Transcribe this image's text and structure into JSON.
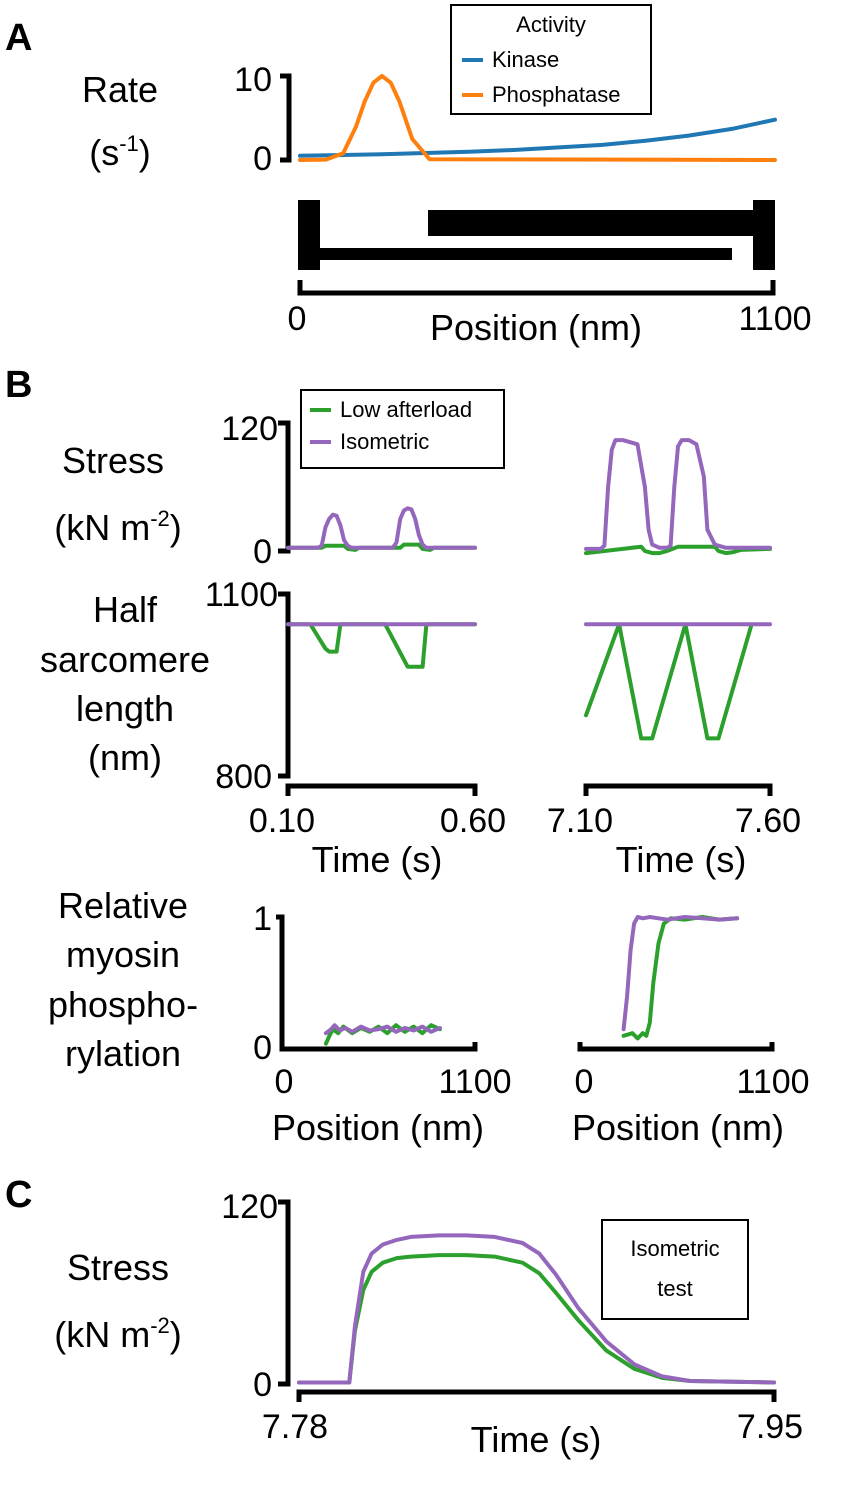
{
  "colors": {
    "kinase": "#1f77b4",
    "phosphatase": "#ff7f0e",
    "low_afterload": "#2ca02c",
    "isometric": "#9467bd",
    "axis": "#000000"
  },
  "panels": {
    "a": {
      "letter": "A"
    },
    "b": {
      "letter": "B"
    },
    "c": {
      "letter": "C"
    }
  },
  "chart_data": [
    {
      "id": "A-rate",
      "type": "line",
      "ylabel_lines": [
        "Rate",
        "(s",
        "-1",
        ")"
      ],
      "xlabel": "Position (nm)",
      "xlim": [
        0,
        1100
      ],
      "ylim": [
        0,
        10
      ],
      "xticks": [
        "0",
        "1100"
      ],
      "yticks": [
        "0",
        "10"
      ],
      "legend": {
        "title": "Activity",
        "position": "top",
        "entries": [
          "Kinase",
          "Phosphatase"
        ]
      },
      "series": [
        {
          "name": "Kinase",
          "color_key": "kinase",
          "x": [
            0,
            100,
            200,
            300,
            400,
            500,
            600,
            700,
            800,
            900,
            1000,
            1100
          ],
          "y": [
            0.5,
            0.6,
            0.7,
            0.85,
            1.0,
            1.2,
            1.5,
            1.8,
            2.3,
            2.9,
            3.7,
            4.8
          ]
        },
        {
          "name": "Phosphatase",
          "color_key": "phosphatase",
          "x": [
            0,
            60,
            100,
            130,
            150,
            170,
            190,
            210,
            230,
            260,
            300,
            1100
          ],
          "y": [
            0,
            0.05,
            0.8,
            4.0,
            7.0,
            9.2,
            10.0,
            9.2,
            7.0,
            2.5,
            0.1,
            0
          ]
        }
      ]
    },
    {
      "id": "B-stress-early",
      "type": "line",
      "ylabel_lines": [
        "Stress",
        "(kN m",
        "-2",
        ")"
      ],
      "xlim": [
        0.1,
        0.6
      ],
      "ylim": [
        0,
        120
      ],
      "yticks": [
        "0",
        "120"
      ],
      "legend": {
        "position": "top",
        "entries": [
          "Low afterload",
          "Isometric"
        ]
      },
      "series": [
        {
          "name": "Low afterload",
          "color_key": "low_afterload",
          "x": [
            0.1,
            0.19,
            0.2,
            0.25,
            0.26,
            0.28,
            0.29,
            0.3,
            0.4,
            0.41,
            0.45,
            0.46,
            0.48,
            0.49,
            0.6
          ],
          "y": [
            3,
            3,
            5,
            5,
            2,
            1,
            3,
            3,
            3,
            6,
            6,
            2,
            1,
            3,
            3
          ]
        },
        {
          "name": "Isometric",
          "color_key": "isometric",
          "x": [
            0.1,
            0.18,
            0.19,
            0.2,
            0.21,
            0.22,
            0.23,
            0.24,
            0.25,
            0.26,
            0.27,
            0.3,
            0.38,
            0.39,
            0.4,
            0.41,
            0.42,
            0.43,
            0.44,
            0.45,
            0.46,
            0.47,
            0.5,
            0.6
          ],
          "y": [
            3,
            3,
            5,
            22,
            30,
            34,
            33,
            24,
            10,
            5,
            3,
            3,
            3,
            8,
            30,
            38,
            40,
            39,
            30,
            15,
            6,
            3,
            3,
            3
          ]
        }
      ]
    },
    {
      "id": "B-stress-late",
      "type": "line",
      "xlim": [
        7.1,
        7.6
      ],
      "ylim": [
        0,
        120
      ],
      "series": [
        {
          "name": "Low afterload",
          "color_key": "low_afterload",
          "x": [
            7.1,
            7.15,
            7.2,
            7.25,
            7.26,
            7.28,
            7.3,
            7.32,
            7.35,
            7.4,
            7.45,
            7.46,
            7.48,
            7.5,
            7.52,
            7.6
          ],
          "y": [
            -2,
            0,
            2,
            4,
            0,
            -2,
            -2,
            0,
            4,
            4,
            4,
            0,
            -2,
            -1,
            1,
            2
          ]
        },
        {
          "name": "Isometric",
          "color_key": "isometric",
          "x": [
            7.1,
            7.14,
            7.15,
            7.16,
            7.17,
            7.18,
            7.2,
            7.24,
            7.26,
            7.27,
            7.28,
            7.3,
            7.32,
            7.33,
            7.34,
            7.35,
            7.36,
            7.38,
            7.4,
            7.42,
            7.43,
            7.45,
            7.48,
            7.6
          ],
          "y": [
            2,
            2,
            5,
            60,
            95,
            104,
            104,
            100,
            60,
            20,
            6,
            3,
            3,
            5,
            60,
            98,
            104,
            104,
            100,
            70,
            20,
            6,
            3,
            3
          ]
        }
      ]
    },
    {
      "id": "B-length-early",
      "type": "line",
      "ylabel_lines": [
        "Half",
        "sarcomere",
        "length",
        "(nm)"
      ],
      "xlabel": "Time (s)",
      "xlim": [
        0.1,
        0.6
      ],
      "ylim": [
        800,
        1100
      ],
      "xticks": [
        "0.10",
        "0.60"
      ],
      "yticks": [
        "800",
        "1100"
      ],
      "series": [
        {
          "name": "Low afterload",
          "color_key": "low_afterload",
          "x": [
            0.1,
            0.15,
            0.16,
            0.2,
            0.21,
            0.23,
            0.24,
            0.3,
            0.35,
            0.36,
            0.42,
            0.43,
            0.46,
            0.47,
            0.6
          ],
          "y": [
            1050,
            1050,
            1050,
            1010,
            1005,
            1005,
            1050,
            1050,
            1050,
            1050,
            980,
            980,
            980,
            1050,
            1050
          ]
        },
        {
          "name": "Isometric",
          "color_key": "isometric",
          "x": [
            0.1,
            0.6
          ],
          "y": [
            1050,
            1050
          ]
        }
      ]
    },
    {
      "id": "B-length-late",
      "type": "line",
      "xlabel": "Time (s)",
      "xlim": [
        7.1,
        7.6
      ],
      "ylim": [
        800,
        1100
      ],
      "xticks": [
        "7.10",
        "7.60"
      ],
      "series": [
        {
          "name": "Low afterload",
          "color_key": "low_afterload",
          "x": [
            7.1,
            7.19,
            7.25,
            7.28,
            7.37,
            7.43,
            7.46,
            7.55
          ],
          "y": [
            900,
            1050,
            862,
            862,
            1050,
            862,
            862,
            1050
          ]
        },
        {
          "name": "Isometric",
          "color_key": "isometric",
          "x": [
            7.1,
            7.6
          ],
          "y": [
            1050,
            1050
          ]
        }
      ]
    },
    {
      "id": "B-phos-early",
      "type": "line",
      "ylabel_lines": [
        "Relative",
        "myosin",
        "phospho-",
        "rylation"
      ],
      "xlabel": "Position (nm)",
      "xlim": [
        0,
        1100
      ],
      "ylim": [
        0,
        1
      ],
      "xticks": [
        "0",
        "1100"
      ],
      "yticks": [
        "0",
        "1"
      ],
      "series": [
        {
          "name": "Low afterload",
          "color_key": "low_afterload",
          "x": [
            250,
            270,
            290,
            320,
            350,
            400,
            450,
            500,
            550,
            600,
            650,
            700,
            750,
            800,
            850,
            900
          ],
          "y": [
            0.04,
            0.1,
            0.15,
            0.12,
            0.17,
            0.12,
            0.16,
            0.13,
            0.17,
            0.12,
            0.18,
            0.13,
            0.17,
            0.12,
            0.18,
            0.15
          ]
        },
        {
          "name": "Isometric",
          "color_key": "isometric",
          "x": [
            250,
            280,
            300,
            330,
            360,
            400,
            450,
            500,
            550,
            600,
            650,
            700,
            750,
            800,
            850,
            900
          ],
          "y": [
            0.12,
            0.15,
            0.18,
            0.14,
            0.16,
            0.13,
            0.17,
            0.14,
            0.15,
            0.17,
            0.13,
            0.16,
            0.14,
            0.17,
            0.13,
            0.16
          ]
        }
      ]
    },
    {
      "id": "B-phos-late",
      "type": "line",
      "xlabel": "Position (nm)",
      "xlim": [
        0,
        1100
      ],
      "ylim": [
        0,
        1
      ],
      "xticks": [
        "0",
        "1100"
      ],
      "series": [
        {
          "name": "Low afterload",
          "color_key": "low_afterload",
          "x": [
            250,
            300,
            330,
            360,
            380,
            400,
            420,
            450,
            480,
            520,
            600,
            700,
            800,
            900
          ],
          "y": [
            0.1,
            0.12,
            0.08,
            0.12,
            0.1,
            0.2,
            0.5,
            0.8,
            0.95,
            0.99,
            0.98,
            1.0,
            0.98,
            0.99
          ]
        },
        {
          "name": "Isometric",
          "color_key": "isometric",
          "x": [
            250,
            270,
            290,
            310,
            330,
            360,
            400,
            450,
            500,
            600,
            700,
            800,
            900
          ],
          "y": [
            0.15,
            0.4,
            0.75,
            0.95,
            1.0,
            0.99,
            1.0,
            0.99,
            0.98,
            1.0,
            0.99,
            0.98,
            0.99
          ]
        }
      ]
    },
    {
      "id": "C-stress",
      "type": "line",
      "ylabel_lines": [
        "Stress",
        "(kN m",
        "-2",
        ")"
      ],
      "xlabel": "Time (s)",
      "xlim": [
        7.78,
        7.95
      ],
      "ylim": [
        0,
        120
      ],
      "xticks": [
        "7.78",
        "7.95"
      ],
      "yticks": [
        "0",
        "120"
      ],
      "legend": {
        "position": "top-right",
        "entries": [
          "Isometric",
          "test"
        ]
      },
      "series": [
        {
          "name": "Low afterload",
          "color_key": "low_afterload",
          "x": [
            7.78,
            7.798,
            7.8,
            7.803,
            7.806,
            7.81,
            7.815,
            7.82,
            7.83,
            7.84,
            7.85,
            7.86,
            7.866,
            7.872,
            7.88,
            7.89,
            7.9,
            7.91,
            7.92,
            7.95
          ],
          "y": [
            1,
            1,
            35,
            62,
            74,
            80,
            83,
            84,
            85,
            85,
            84,
            80,
            73,
            60,
            42,
            22,
            10,
            4,
            2,
            1
          ]
        },
        {
          "name": "Isometric",
          "color_key": "isometric",
          "x": [
            7.78,
            7.798,
            7.8,
            7.803,
            7.806,
            7.81,
            7.815,
            7.82,
            7.83,
            7.84,
            7.85,
            7.86,
            7.866,
            7.872,
            7.88,
            7.89,
            7.9,
            7.91,
            7.92,
            7.95
          ],
          "y": [
            1,
            1,
            38,
            74,
            86,
            92,
            95,
            97,
            98,
            98,
            97,
            93,
            86,
            72,
            50,
            28,
            13,
            5,
            2,
            1
          ]
        }
      ]
    }
  ]
}
